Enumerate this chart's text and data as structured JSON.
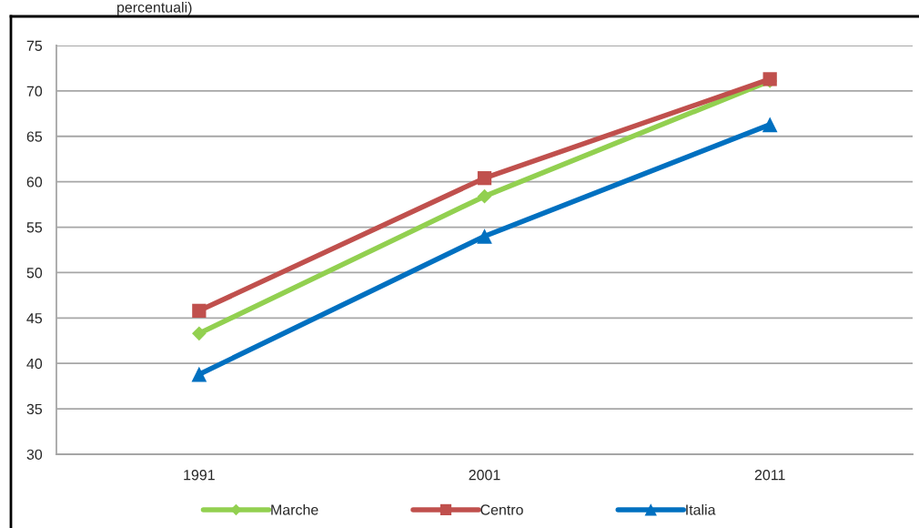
{
  "chart_data": {
    "type": "line",
    "title": "percentuali)",
    "categories": [
      "1991",
      "2001",
      "2011"
    ],
    "series": [
      {
        "name": "Marche",
        "color": "#92d050",
        "values": [
          43.3,
          58.4,
          71.1
        ],
        "marker": "diamond"
      },
      {
        "name": "Centro",
        "color": "#c0504d",
        "values": [
          45.8,
          60.4,
          71.3
        ],
        "marker": "square"
      },
      {
        "name": "Italia",
        "color": "#0070c0",
        "values": [
          38.8,
          54.0,
          66.3
        ],
        "marker": "triangle"
      }
    ],
    "ylim": [
      30,
      75
    ],
    "yticks": [
      30,
      35,
      40,
      45,
      50,
      55,
      60,
      65,
      70,
      75
    ],
    "grid": "y",
    "legend": "bottom",
    "line_style": "solid"
  }
}
